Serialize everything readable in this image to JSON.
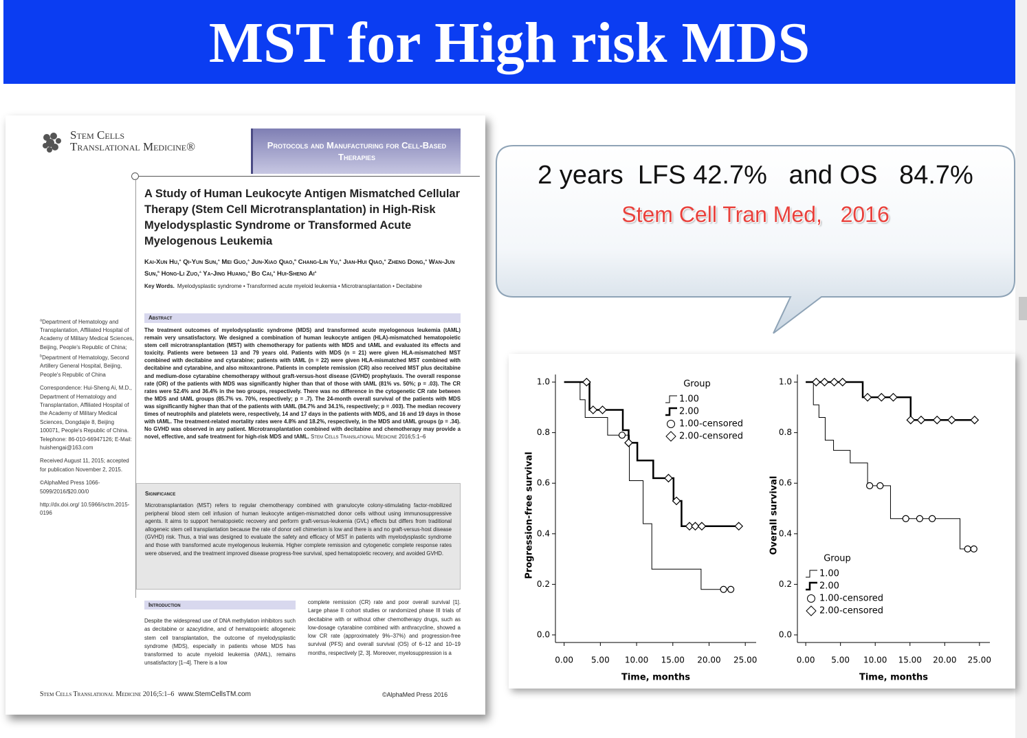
{
  "slide": {
    "title": "MST for High risk MDS"
  },
  "callout": {
    "headline": "2 years  LFS 42.7%   and OS   84.7%",
    "source": "Stem Cell Tran Med,   2016"
  },
  "paper": {
    "journal": {
      "line1": "Stem Cells",
      "line2": "Translational Medicine®"
    },
    "section": "Protocols and Manufacturing for Cell-Based Therapies",
    "title": "A Study of Human Leukocyte Antigen Mismatched Cellular Therapy (Stem Cell Microtransplantation) in High-Risk Myelodysplastic Syndrome or Transformed Acute Myelogenous Leukemia",
    "authors": [
      {
        "name": "Kai-Xun Hu,",
        "affil": "a"
      },
      {
        "name": "Qi-Yun Sun,",
        "affil": "a"
      },
      {
        "name": "Mei Guo,",
        "affil": "a"
      },
      {
        "name": "Jun-Xiao Qiao,",
        "affil": "b"
      },
      {
        "name": "Chang-Lin Yu,",
        "affil": "a"
      },
      {
        "name": "Jian-Hui Qiao,",
        "affil": "a"
      },
      {
        "name": "Zheng Dong,",
        "affil": "a"
      },
      {
        "name": "Wan-Jun Sun,",
        "affil": "b"
      },
      {
        "name": "Hong-Li Zuo,",
        "affil": "a"
      },
      {
        "name": "Ya-Jing Huang,",
        "affil": "a"
      },
      {
        "name": "Bo Cai,",
        "affil": "a"
      },
      {
        "name": "Hui-Sheng Ai",
        "affil": "a"
      }
    ],
    "key_words": {
      "label": "Key Words.",
      "text": "Myelodysplastic syndrome • Transformed acute myeloid leukemia • Microtransplantation • Decitabine"
    },
    "affiliations": [
      {
        "sup": "a",
        "text": "Department of Hematology and Transplantation, Affiliated Hospital of Academy of Military Medical Sciences, Beijing, People's Republic of China;"
      },
      {
        "sup": "b",
        "text": "Department of Hematology, Second Artillery General Hospital, Beijing, People's Republic of China"
      }
    ],
    "correspondence": "Correspondence: Hui-Sheng Ai, M.D., Department of Hematology and Transplantation, Affiliated Hospital of the Academy of Military Medical Sciences, Dongdajie 8, Beijing 100071, People's Republic of China. Telephone: 86-010-66947126; E-Mail: huishengai@163.com",
    "received": "Received August 11, 2015; accepted for publication November 2, 2015.",
    "copyright": "©AlphaMed Press 1066-5099/2016/$20.00/0",
    "doi": "http://dx.doi.org/ 10.5966/sctm.2015-0196",
    "abstract": {
      "heading": "Abstract",
      "text": "The treatment outcomes of myelodysplastic syndrome (MDS) and transformed acute myelogenous leukemia (tAML) remain very unsatisfactory. We designed a combination of human leukocyte antigen (HLA)-mismatched hematopoietic stem cell microtransplantation (MST) with chemotherapy for patients with MDS and tAML and evaluated its effects and toxicity. Patients were between 13 and 79 years old. Patients with MDS (n = 21) were given HLA-mismatched MST combined with decitabine and cytarabine; patients with tAML (n = 22) were given HLA-mismatched MST combined with decitabine and cytarabine, and also mitoxantrone. Patients in complete remission (CR) also received MST plus decitabine and medium-dose cytarabine chemotherapy without graft-versus-host disease (GVHD) prophylaxis. The overall response rate (OR) of the patients with MDS was significantly higher than that of those with tAML (81% vs. 50%; p = .03). The CR rates were 52.4% and 36.4% in the two groups, respectively. There was no difference in the cytogenetic CR rate between the MDS and tAML groups (85.7% vs. 70%, respectively; p = .7). The 24-month overall survival of the patients with MDS was significantly higher than that of the patients with tAML (84.7% and 34.1%, respectively; p = .003). The median recovery times of neutrophils and platelets were, respectively, 14 and 17 days in the patients with MDS, and 16 and 19 days in those with tAML. The treatment-related mortality rates were 4.8% and 18.2%, respectively, in the MDS and tAML groups (p = .34). No GVHD was observed in any patient. Microtransplantation combined with decitabine and chemotherapy may provide a novel, effective, and safe treatment for high-risk MDS and tAML.",
      "citation": "Stem Cells Translational Medicine 2016;5:1–6"
    },
    "significance": {
      "heading": "Significance",
      "text": "Microtransplantation (MST) refers to regular chemotherapy combined with granulocyte colony-stimulating factor-mobilized peripheral blood stem cell infusion of human leukocyte antigen-mismatched donor cells without using immunosuppressive agents. It aims to support hematopoietic recovery and perform graft-versus-leukemia (GVL) effects but differs from traditional allogeneic stem cell transplantation because the rate of donor cell chimerism is low and there is and no graft-versus-host disease (GVHD) risk. Thus, a trial was designed to evaluate the safety and efficacy of MST in patients with myelodysplastic syndrome and those with transformed acute myelogenous leukemia. Higher complete remission and cytogenetic complete response rates were observed, and the treatment improved disease progress-free survival, sped hematopoietic recovery, and avoided GVHD."
    },
    "introduction": {
      "heading": "Introduction",
      "column1": "Despite the widespread use of DNA methylation inhibitors such as decitabine or azacytidine, and of hematopoietic allogeneic stem cell transplantation, the outcome of myelodysplastic syndrome (MDS), especially in patients whose MDS has transformed to acute myeloid leukemia (tAML), remains unsatisfactory [1–4]. There is a low",
      "column2": "complete remission (CR) rate and poor overall survival [1]. Large phase II cohort studies or randomized phase III trials of decitabine with or without other chemotherapy drugs, such as low-dosage cytarabine combined with anthracycline, showed a low CR rate (approximately 9%–37%) and progression-free survival (PFS) and overall survival (OS) of 6–12 and 10–19 months, respectively [2, 3]. Moreover, myelosuppression is a"
    },
    "footer": {
      "journal": "Stem Cells Translational Medicine 2016;5:1–6",
      "url": "www.StemCellsTM.com",
      "right": "©AlphaMed Press 2016"
    }
  },
  "chart_data": [
    {
      "type": "step",
      "x_label": "Time, months",
      "y_label": "Progression-free survival",
      "legend_title": "Group",
      "legend": "upper right",
      "xlim": [
        -1.2,
        26.5
      ],
      "ylim": [
        -0.03,
        1.03
      ],
      "xticks": [
        {
          "value": 0,
          "label": "0.00"
        },
        {
          "value": 5,
          "label": "5.00"
        },
        {
          "value": 10,
          "label": "10.00"
        },
        {
          "value": 15,
          "label": "15.00"
        },
        {
          "value": 20,
          "label": "20.00"
        },
        {
          "value": 25,
          "label": "25.00"
        }
      ],
      "yticks": [
        {
          "value": 0,
          "label": "0.0"
        },
        0.2,
        0.4,
        0.6,
        0.8,
        {
          "value": 1,
          "label": "1.0"
        }
      ],
      "series": [
        {
          "name": "1.00",
          "color": "#000000",
          "marker": "none",
          "width": 1,
          "x": [
            0,
            2.2,
            2.9,
            6.0,
            9.0,
            10.9,
            12.1,
            18.9,
            23.0
          ],
          "values": [
            1.0,
            0.93,
            0.86,
            0.79,
            0.61,
            0.44,
            0.26,
            0.18,
            0.18
          ]
        },
        {
          "name": "2.00",
          "color": "#000000",
          "marker": "none",
          "width": 2.5,
          "x": [
            0,
            3.5,
            8.1,
            8.9,
            10.1,
            12.3,
            15.1,
            16.2,
            24.1
          ],
          "values": [
            1.0,
            0.89,
            0.81,
            0.76,
            0.69,
            0.62,
            0.53,
            0.43,
            0.43
          ]
        },
        {
          "name": "1.00-censored",
          "color": "#000000",
          "marker": "circle",
          "x": [
            8.0,
            22.0,
            23.0
          ],
          "values": [
            0.79,
            0.18,
            0.18
          ]
        },
        {
          "name": "2.00-censored",
          "color": "#000000",
          "marker": "diamond",
          "x": [
            3.1,
            4.0,
            5.3,
            8.9,
            14.4,
            15.5,
            17.3,
            18.1,
            19.0,
            24.1
          ],
          "values": [
            1.0,
            0.89,
            0.89,
            0.76,
            0.62,
            0.53,
            0.43,
            0.43,
            0.43,
            0.43
          ]
        }
      ]
    },
    {
      "type": "step",
      "x_label": "Time, months",
      "y_label": "Overall survival",
      "legend_title": "Group",
      "legend": "lower left",
      "xlim": [
        -1.2,
        26.5
      ],
      "ylim": [
        -0.03,
        1.03
      ],
      "xticks": [
        {
          "value": 0,
          "label": "0.00"
        },
        {
          "value": 5,
          "label": "5.00"
        },
        {
          "value": 10,
          "label": "10.00"
        },
        {
          "value": 15,
          "label": "15.00"
        },
        {
          "value": 20,
          "label": "20.00"
        },
        {
          "value": 25,
          "label": "25.00"
        }
      ],
      "yticks": [
        {
          "value": 0,
          "label": "0.0"
        },
        0.2,
        0.4,
        0.6,
        0.8,
        {
          "value": 1,
          "label": "1.0"
        }
      ],
      "series": [
        {
          "name": "1.00",
          "color": "#000000",
          "marker": "none",
          "width": 1,
          "x": [
            0,
            1.1,
            1.9,
            2.8,
            4.0,
            6.4,
            8.9,
            12.2,
            22.2,
            24.2
          ],
          "values": [
            1.0,
            0.91,
            0.86,
            0.77,
            0.73,
            0.68,
            0.59,
            0.46,
            0.34,
            0.34
          ]
        },
        {
          "name": "2.00",
          "color": "#000000",
          "marker": "none",
          "width": 2.5,
          "x": [
            0,
            8.2,
            15.1,
            24.3
          ],
          "values": [
            1.0,
            0.94,
            0.85,
            0.85
          ]
        },
        {
          "name": "1.00-censored",
          "color": "#000000",
          "marker": "circle",
          "x": [
            9.2,
            10.7,
            14.4,
            16.4,
            18.2,
            23.3,
            24.2
          ],
          "values": [
            0.59,
            0.59,
            0.46,
            0.46,
            0.46,
            0.34,
            0.34
          ]
        },
        {
          "name": "2.00-censored",
          "color": "#000000",
          "marker": "diamond",
          "x": [
            1.5,
            2.7,
            4.1,
            5.3,
            8.9,
            10.9,
            12.6,
            15.1,
            16.6,
            18.9,
            21.0,
            24.3
          ],
          "values": [
            1.0,
            1.0,
            1.0,
            1.0,
            0.94,
            0.94,
            0.94,
            0.85,
            0.85,
            0.85,
            0.85,
            0.85
          ]
        }
      ]
    }
  ]
}
